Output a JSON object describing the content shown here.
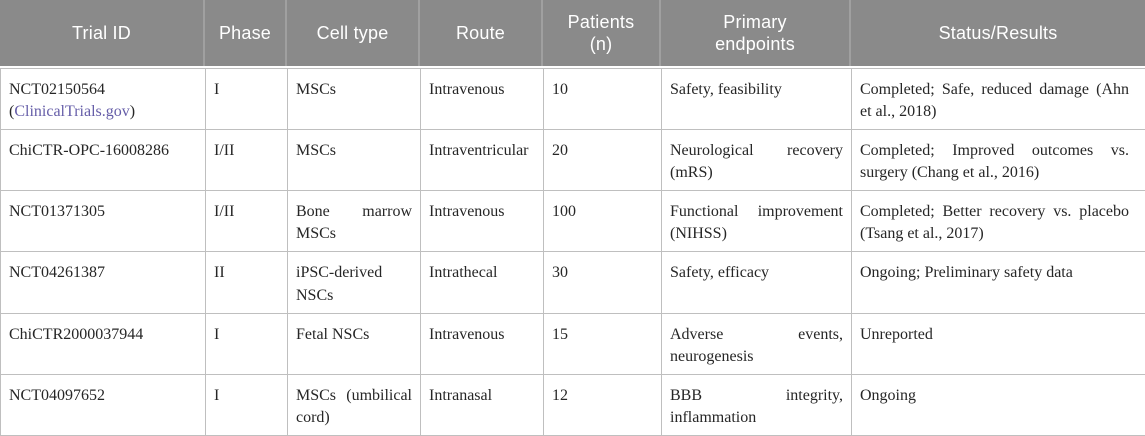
{
  "colors": {
    "header_bg": "#8a8a8a",
    "header_text": "#ffffff",
    "header_divider": "#a0a0a0",
    "body_border": "#bfbfbf",
    "body_text": "#262626",
    "link": "#655da8"
  },
  "header": {
    "columns": [
      {
        "id": "trial_id",
        "label": "Trial ID"
      },
      {
        "id": "phase",
        "label": "Phase"
      },
      {
        "id": "cell_type",
        "label": "Cell type"
      },
      {
        "id": "route",
        "label": "Route"
      },
      {
        "id": "patients",
        "label": "Patients\n(n)"
      },
      {
        "id": "primary_endpoints",
        "label": "Primary\nendpoints"
      },
      {
        "id": "status_results",
        "label": "Status/Results"
      }
    ]
  },
  "rows": [
    {
      "trial_id": "NCT02150564",
      "trial_link": {
        "prefix": "(",
        "text": "ClinicalTrials.gov",
        "suffix": ")"
      },
      "phase": "I",
      "cell_type": "MSCs",
      "route": "Intravenous",
      "patients": "10",
      "primary_endpoints": "Safety, feasibility",
      "status_results": "Completed; Safe, reduced damage (Ahn et al., 2018)"
    },
    {
      "trial_id": "ChiCTR-OPC-16008286",
      "trial_link": null,
      "phase": "I/II",
      "cell_type": "MSCs",
      "route": "Intraventricular",
      "patients": "20",
      "primary_endpoints": "Neurological recovery (mRS)",
      "status_results": "Completed; Improved outcomes vs. surgery (Chang et al., 2016)"
    },
    {
      "trial_id": "NCT01371305",
      "trial_link": null,
      "phase": "I/II",
      "cell_type": "Bone marrow MSCs",
      "route": "Intravenous",
      "patients": "100",
      "primary_endpoints": "Functional improvement (NIHSS)",
      "status_results": "Completed; Better recovery vs. placebo (Tsang et al., 2017)"
    },
    {
      "trial_id": "NCT04261387",
      "trial_link": null,
      "phase": "II",
      "cell_type": "iPSC-derived NSCs",
      "route": "Intrathecal",
      "patients": "30",
      "primary_endpoints": "Safety, efficacy",
      "status_results": "Ongoing; Preliminary safety data"
    },
    {
      "trial_id": "ChiCTR2000037944",
      "trial_link": null,
      "phase": "I",
      "cell_type": "Fetal NSCs",
      "route": "Intravenous",
      "patients": "15",
      "primary_endpoints": "Adverse events, neurogenesis",
      "status_results": "Unreported"
    },
    {
      "trial_id": "NCT04097652",
      "trial_link": null,
      "phase": "I",
      "cell_type": "MSCs (umbilical cord)",
      "route": "Intranasal",
      "patients": "12",
      "primary_endpoints": "BBB integrity, inflammation",
      "status_results": "Ongoing"
    }
  ]
}
